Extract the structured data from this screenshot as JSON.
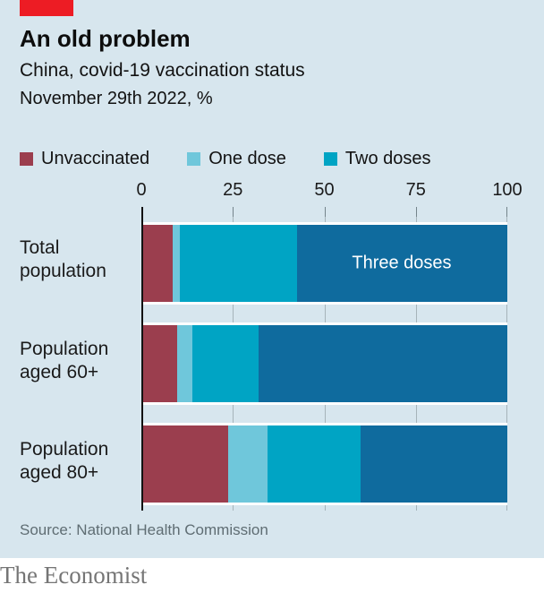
{
  "header": {
    "title": "An old problem",
    "subtitle": "China, covid-19 vaccination status",
    "dateline": "November 29th 2022, %"
  },
  "legend": {
    "items": [
      {
        "label": "Unvaccinated",
        "color": "#9b3e4e"
      },
      {
        "label": "One dose",
        "color": "#6fc7db"
      },
      {
        "label": "Two doses",
        "color": "#00a4c4"
      }
    ]
  },
  "chart_data": {
    "type": "bar",
    "orientation": "horizontal",
    "stacked": true,
    "title": "An old problem",
    "subtitle": "China, covid-19 vaccination status",
    "unit": "%",
    "categories": [
      "Total population",
      "Population aged 60+",
      "Population aged 80+"
    ],
    "row_label_lines": [
      [
        "Total",
        "population"
      ],
      [
        "Population",
        "aged 60+"
      ],
      [
        "Population",
        "aged 80+"
      ]
    ],
    "series": [
      {
        "name": "Unvaccinated",
        "color": "#9b3e4e",
        "values": [
          8.0,
          9.3,
          23.4
        ]
      },
      {
        "name": "One dose",
        "color": "#6fc7db",
        "values": [
          2.0,
          4.3,
          10.8
        ]
      },
      {
        "name": "Two doses",
        "color": "#00a4c4",
        "values": [
          32.2,
          18.2,
          25.4
        ]
      },
      {
        "name": "Three doses",
        "color": "#0f6b9e",
        "values": [
          57.8,
          68.2,
          40.4
        ]
      }
    ],
    "inner_label": {
      "text": "Three doses",
      "row": 0,
      "series": 3
    },
    "xlim": [
      0,
      100
    ],
    "ticks": [
      0,
      25,
      50,
      75,
      100
    ],
    "tick_labels": [
      "0",
      "25",
      "50",
      "75",
      "100"
    ],
    "grid": true,
    "legend_position": "top"
  },
  "footer": {
    "source": "Source: National Health Commission",
    "brand": "The Economist"
  },
  "colors": {
    "card_background": "#d7e6ee",
    "brand_red": "#ed1c24",
    "axis": "#121212",
    "gridline": "#a6b4ba",
    "inner_label_text": "#ffffff",
    "source_text": "#5f6d73",
    "brand_text": "#757575"
  }
}
